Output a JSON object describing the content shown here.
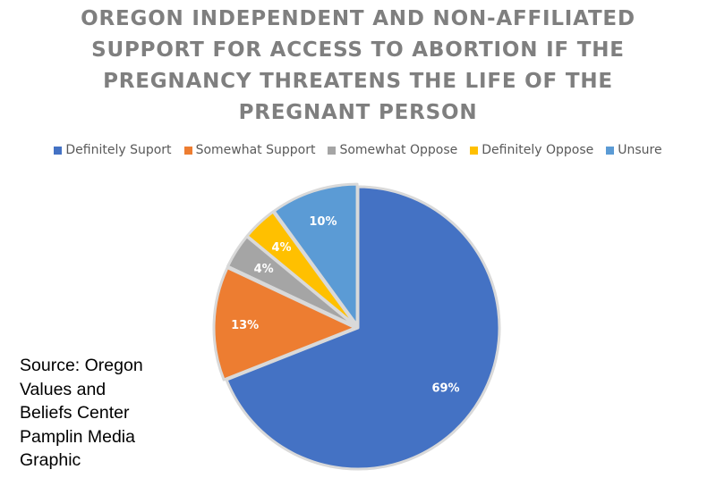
{
  "chart_data": {
    "type": "pie",
    "title_lines": [
      "OREGON INDEPENDENT AND NON-AFFILIATED",
      "SUPPORT FOR ACCESS TO ABORTION IF THE",
      "PREGNANCY THREATENS THE LIFE OF THE",
      "PREGNANT PERSON"
    ],
    "legend_placement": "top",
    "slices": [
      {
        "label": "Definitely Suport",
        "value": 69,
        "display": "69%",
        "color": "#4472c4"
      },
      {
        "label": "Somewhat Support",
        "value": 13,
        "display": "13%",
        "color": "#ed7d31"
      },
      {
        "label": "Somewhat Oppose",
        "value": 4,
        "display": "4%",
        "color": "#a5a5a5"
      },
      {
        "label": "Definitely Oppose",
        "value": 4,
        "display": "4%",
        "color": "#ffc000"
      },
      {
        "label": "Unsure",
        "value": 10,
        "display": "10%",
        "color": "#5b9bd5"
      }
    ]
  },
  "source_lines": [
    "Source: Oregon",
    "Values and",
    "Beliefs Center",
    "Pamplin Media",
    "Graphic"
  ]
}
